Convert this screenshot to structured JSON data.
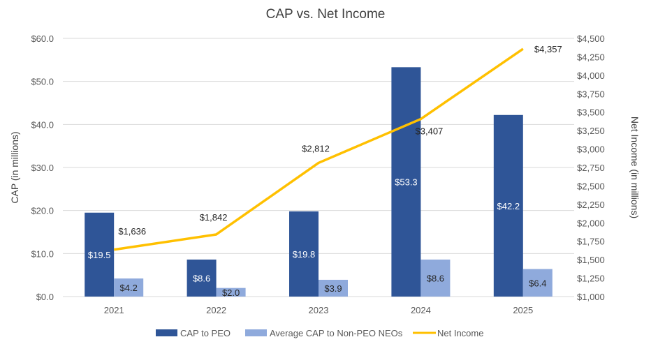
{
  "chart_data": {
    "type": "bar",
    "title": "CAP vs. Net Income",
    "categories": [
      "2021",
      "2022",
      "2023",
      "2024",
      "2025"
    ],
    "ylabel": "CAP (in millions)",
    "y2label": "Net Income (in millions)",
    "ylim": [
      0,
      60
    ],
    "y2lim": [
      1000,
      4500
    ],
    "yticks": [
      "$0.0",
      "$10.0",
      "$20.0",
      "$30.0",
      "$40.0",
      "$50.0",
      "$60.0"
    ],
    "y2ticks": [
      "$1,000",
      "$1,250",
      "$1,500",
      "$1,750",
      "$2,000",
      "$2,250",
      "$2,500",
      "$2,750",
      "$3,000",
      "$3,250",
      "$3,500",
      "$3,750",
      "$4,000",
      "$4,250",
      "$4,500"
    ],
    "grid": true,
    "legend_position": "bottom",
    "series": [
      {
        "name": "CAP to PEO",
        "type": "bar",
        "axis": "left",
        "color": "#2F5597",
        "values": [
          19.5,
          8.6,
          19.8,
          53.3,
          42.2
        ],
        "labels": [
          "$19.5",
          "$8.6",
          "$19.8",
          "$53.3",
          "$42.2"
        ]
      },
      {
        "name": "Average CAP to Non-PEO NEOs",
        "type": "bar",
        "axis": "left",
        "color": "#8FAADC",
        "values": [
          4.2,
          2.0,
          3.9,
          8.6,
          6.4
        ],
        "labels": [
          "$4.2",
          "$2.0",
          "$3.9",
          "$8.6",
          "$6.4"
        ]
      },
      {
        "name": "Net Income",
        "type": "line",
        "axis": "right",
        "color": "#FFC000",
        "values": [
          1636,
          1842,
          2812,
          3407,
          4357
        ],
        "labels": [
          "$1,636",
          "$1,842",
          "$2,812",
          "$3,407",
          "$4,357"
        ]
      }
    ]
  }
}
